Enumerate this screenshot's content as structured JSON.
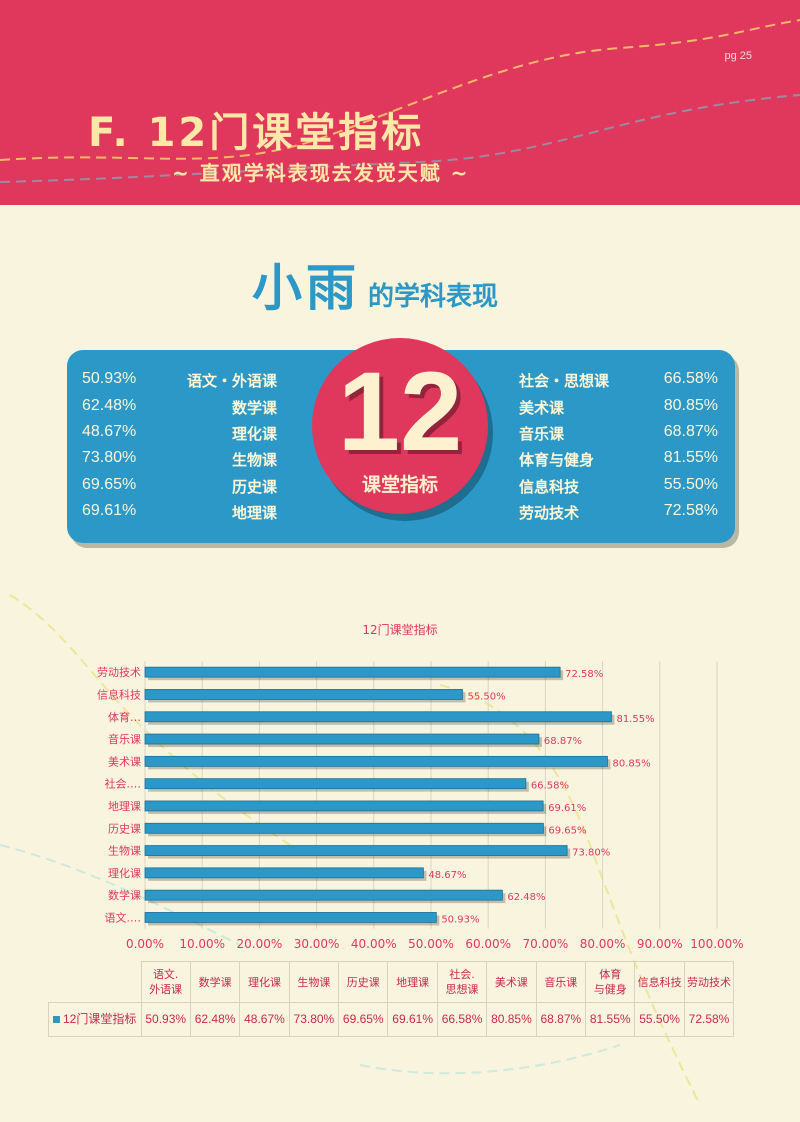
{
  "page": {
    "number": "pg 25"
  },
  "header": {
    "title": "F. 12门课堂指标",
    "subtitle": "~ 直观学科表现去发觉天赋 ~"
  },
  "heading": {
    "name": "小雨",
    "suffix": "的学科表现"
  },
  "badge": {
    "number": "12",
    "label": "课堂指标"
  },
  "summary": {
    "left": [
      {
        "pct": "50.93%",
        "name": "语文・外语课"
      },
      {
        "pct": "62.48%",
        "name": "数学课"
      },
      {
        "pct": "48.67%",
        "name": "理化课"
      },
      {
        "pct": "73.80%",
        "name": "生物课"
      },
      {
        "pct": "69.65%",
        "name": "历史课"
      },
      {
        "pct": "69.61%",
        "name": "地理课"
      }
    ],
    "right": [
      {
        "name": "社会・思想课",
        "pct": "66.58%"
      },
      {
        "name": "美术课",
        "pct": "80.85%"
      },
      {
        "name": "音乐课",
        "pct": "68.87%"
      },
      {
        "name": "体育与健身",
        "pct": "81.55%"
      },
      {
        "name": "信息科技",
        "pct": "55.50%"
      },
      {
        "name": "劳动技术",
        "pct": "72.58%"
      }
    ]
  },
  "colors": {
    "accent_red": "#e0385c",
    "accent_blue": "#2b98c7",
    "background": "#f8f4dd"
  },
  "chart_data": {
    "type": "bar",
    "orientation": "horizontal",
    "title": "12门课堂指标",
    "categories": [
      "劳动技术",
      "信息科技",
      "体育…",
      "音乐课",
      "美术课",
      "社会.…",
      "地理课",
      "历史课",
      "生物课",
      "理化课",
      "数学课",
      "语文.…"
    ],
    "values": [
      72.58,
      55.5,
      81.55,
      68.87,
      80.85,
      66.58,
      69.61,
      69.65,
      73.8,
      48.67,
      62.48,
      50.93
    ],
    "value_labels": [
      "72.58%",
      "55.50%",
      "81.55%",
      "68.87%",
      "80.85%",
      "66.58%",
      "69.61%",
      "69.65%",
      "73.80%",
      "48.67%",
      "62.48%",
      "50.93%"
    ],
    "xlim": [
      0,
      100
    ],
    "x_ticks": [
      "0.00%",
      "10.00%",
      "20.00%",
      "30.00%",
      "40.00%",
      "50.00%",
      "60.00%",
      "70.00%",
      "80.00%",
      "90.00%",
      "100.00%"
    ],
    "grid": true,
    "series": [
      {
        "name": "12门课堂指标",
        "color": "#2b98c7"
      }
    ],
    "table": {
      "columns": [
        [
          "语文.",
          "外语课"
        ],
        [
          "数学课"
        ],
        [
          "理化课"
        ],
        [
          "生物课"
        ],
        [
          "历史课"
        ],
        [
          "地理课"
        ],
        [
          "社会.",
          "思想课"
        ],
        [
          "美术课"
        ],
        [
          "音乐课"
        ],
        [
          "体育",
          "与健身"
        ],
        [
          "信息科技"
        ],
        [
          "劳动技术"
        ]
      ],
      "row_label": "12门课堂指标",
      "values": [
        "50.93%",
        "62.48%",
        "48.67%",
        "73.80%",
        "69.65%",
        "69.61%",
        "66.58%",
        "80.85%",
        "68.87%",
        "81.55%",
        "55.50%",
        "72.58%"
      ]
    }
  }
}
